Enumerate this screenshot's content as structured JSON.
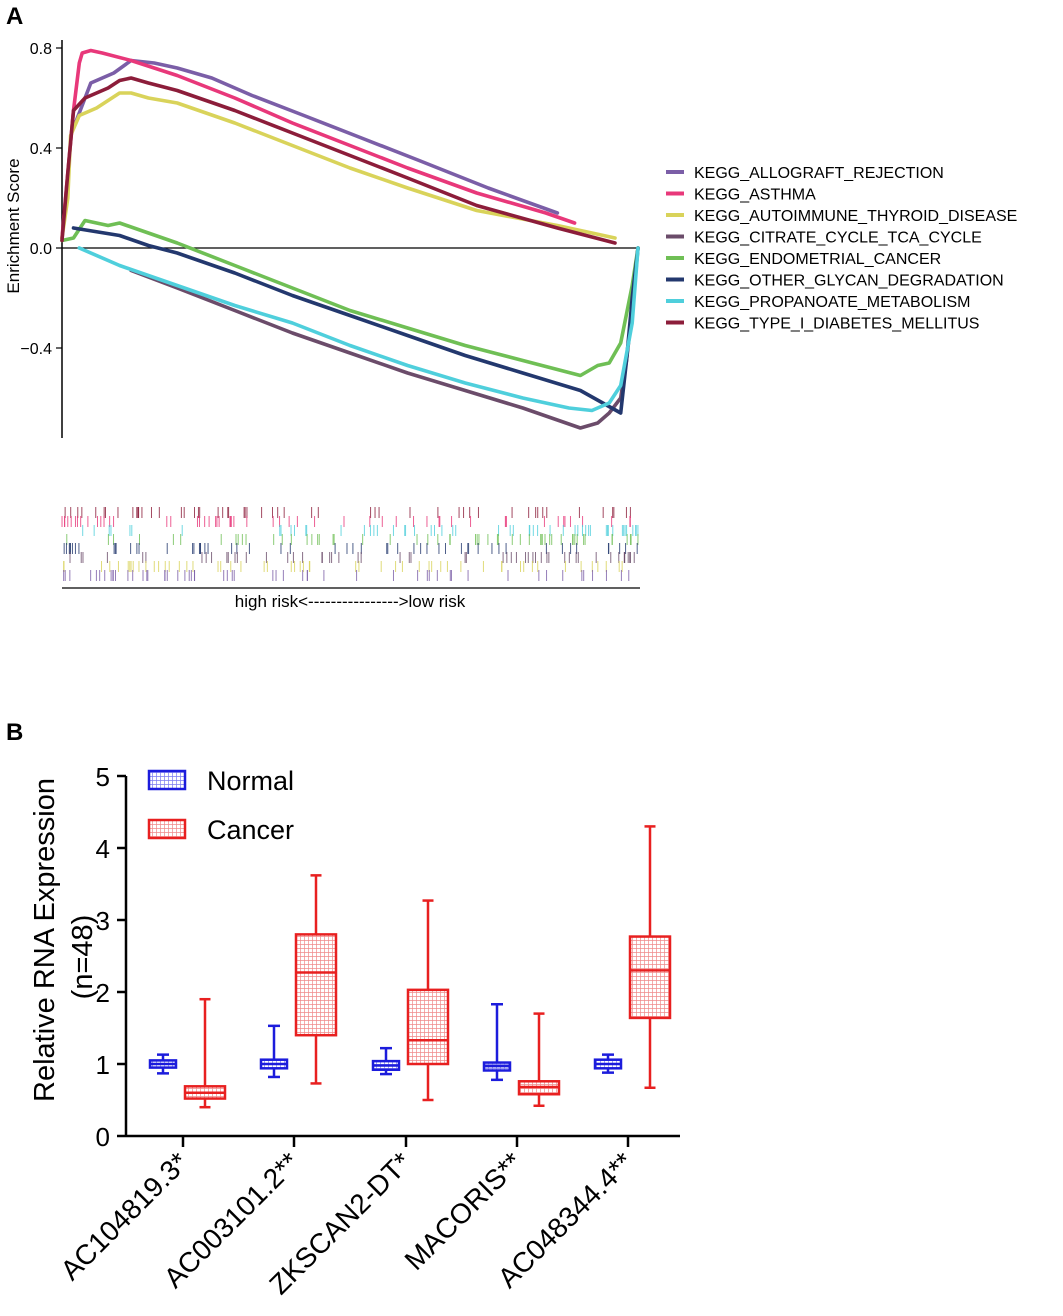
{
  "panels": {
    "a": {
      "letter": "A"
    },
    "b": {
      "letter": "B"
    }
  },
  "chart_data": [
    {
      "type": "line",
      "title": "",
      "xlabel": "high risk<---------------->low risk",
      "ylabel": "Enrichment Score",
      "yticks": [
        0.8,
        0.4,
        0.0,
        -0.4
      ],
      "ytick_labels": [
        "0.8",
        "0.4",
        "0.0",
        "−0.4"
      ],
      "ylim": [
        -0.76,
        0.81
      ],
      "xlim": [
        0,
        1
      ],
      "legend_position": "right",
      "series": [
        {
          "name": "KEGG_ALLOGRAFT_REJECTION",
          "color": "#7b5ea7",
          "x": [
            0.02,
            0.05,
            0.09,
            0.12,
            0.16,
            0.2,
            0.26,
            0.33,
            0.42,
            0.52,
            0.62,
            0.74,
            0.86
          ],
          "y": [
            0.48,
            0.66,
            0.7,
            0.75,
            0.74,
            0.72,
            0.68,
            0.61,
            0.53,
            0.44,
            0.35,
            0.24,
            0.14
          ]
        },
        {
          "name": "KEGG_ASTHMA",
          "color": "#e8387a",
          "x": [
            0.0,
            0.01,
            0.02,
            0.03,
            0.035,
            0.05,
            0.07,
            0.12,
            0.2,
            0.3,
            0.4,
            0.5,
            0.6,
            0.72,
            0.84,
            0.89
          ],
          "y": [
            0.04,
            0.3,
            0.55,
            0.74,
            0.78,
            0.79,
            0.78,
            0.75,
            0.69,
            0.6,
            0.5,
            0.41,
            0.32,
            0.22,
            0.14,
            0.1
          ]
        },
        {
          "name": "KEGG_AUTOIMMUNE_THYROID_DISEASE",
          "color": "#d9d35a",
          "x": [
            0.0,
            0.01,
            0.015,
            0.03,
            0.06,
            0.1,
            0.12,
            0.15,
            0.2,
            0.3,
            0.4,
            0.5,
            0.6,
            0.72,
            0.86,
            0.96
          ],
          "y": [
            0.04,
            0.2,
            0.45,
            0.53,
            0.56,
            0.62,
            0.62,
            0.6,
            0.58,
            0.5,
            0.41,
            0.32,
            0.24,
            0.15,
            0.09,
            0.04
          ]
        },
        {
          "name": "KEGG_CITRATE_CYCLE_TCA_CYCLE",
          "color": "#6b4c6a",
          "x": [
            0.12,
            0.2,
            0.3,
            0.4,
            0.5,
            0.6,
            0.7,
            0.8,
            0.9,
            0.93,
            0.95,
            0.97,
            0.98,
            0.99,
            1.0
          ],
          "y": [
            -0.09,
            -0.16,
            -0.25,
            -0.34,
            -0.42,
            -0.5,
            -0.57,
            -0.64,
            -0.72,
            -0.7,
            -0.66,
            -0.6,
            -0.45,
            -0.25,
            0.0
          ]
        },
        {
          "name": "KEGG_ENDOMETRIAL_CANCER",
          "color": "#6fbf55",
          "x": [
            0.0,
            0.02,
            0.04,
            0.08,
            0.1,
            0.15,
            0.2,
            0.3,
            0.4,
            0.5,
            0.6,
            0.7,
            0.8,
            0.9,
            0.93,
            0.95,
            0.97,
            0.99,
            1.0
          ],
          "y": [
            0.03,
            0.04,
            0.11,
            0.09,
            0.1,
            0.06,
            0.02,
            -0.07,
            -0.16,
            -0.25,
            -0.32,
            -0.39,
            -0.45,
            -0.51,
            -0.47,
            -0.46,
            -0.38,
            -0.15,
            0.0
          ]
        },
        {
          "name": "KEGG_OTHER_GLYCAN_DEGRADATION",
          "color": "#23386e",
          "x": [
            0.02,
            0.1,
            0.15,
            0.2,
            0.3,
            0.4,
            0.5,
            0.6,
            0.7,
            0.8,
            0.9,
            0.97,
            0.98,
            0.99,
            1.0
          ],
          "y": [
            0.08,
            0.05,
            0.01,
            -0.02,
            -0.1,
            -0.19,
            -0.27,
            -0.35,
            -0.43,
            -0.5,
            -0.57,
            -0.66,
            -0.45,
            -0.2,
            0.0
          ]
        },
        {
          "name": "KEGG_PROPANOATE_METABOLISM",
          "color": "#4fcfdc",
          "x": [
            0.03,
            0.1,
            0.2,
            0.3,
            0.4,
            0.5,
            0.6,
            0.7,
            0.8,
            0.88,
            0.92,
            0.95,
            0.97,
            0.99,
            1.0
          ],
          "y": [
            0.0,
            -0.07,
            -0.15,
            -0.23,
            -0.3,
            -0.39,
            -0.47,
            -0.54,
            -0.6,
            -0.64,
            -0.65,
            -0.62,
            -0.55,
            -0.3,
            0.0
          ]
        },
        {
          "name": "KEGG_TYPE_I_DIABETES_MELLITUS",
          "color": "#8c1d3a",
          "x": [
            0.0,
            0.01,
            0.02,
            0.04,
            0.08,
            0.1,
            0.12,
            0.15,
            0.2,
            0.3,
            0.4,
            0.5,
            0.6,
            0.72,
            0.86,
            0.96
          ],
          "y": [
            0.03,
            0.3,
            0.55,
            0.6,
            0.64,
            0.67,
            0.68,
            0.66,
            0.63,
            0.55,
            0.46,
            0.37,
            0.28,
            0.17,
            0.08,
            0.02
          ]
        }
      ]
    },
    {
      "type": "box",
      "title": "",
      "xlabel": "",
      "ylabel": "Relative RNA Expression",
      "ylabel2": "(n=48)",
      "ylim": [
        0,
        5
      ],
      "yticks": [
        0,
        1,
        2,
        3,
        4,
        5
      ],
      "legend_position": "top-left",
      "categories": [
        "AC104819.3*",
        "AC003101.2**",
        "ZKSCAN2-DT*",
        "MACORIS**",
        "AC048344.4**"
      ],
      "series": [
        {
          "name": "Normal",
          "color": "#1c1cdc",
          "boxes": [
            {
              "min": 0.87,
              "q1": 0.95,
              "median": 1.0,
              "q3": 1.05,
              "max": 1.13
            },
            {
              "min": 0.82,
              "q1": 0.94,
              "median": 1.0,
              "q3": 1.06,
              "max": 1.53
            },
            {
              "min": 0.86,
              "q1": 0.92,
              "median": 0.98,
              "q3": 1.04,
              "max": 1.22
            },
            {
              "min": 0.78,
              "q1": 0.91,
              "median": 0.97,
              "q3": 1.02,
              "max": 1.83
            },
            {
              "min": 0.88,
              "q1": 0.94,
              "median": 1.0,
              "q3": 1.06,
              "max": 1.13
            }
          ]
        },
        {
          "name": "Cancer",
          "color": "#e82020",
          "boxes": [
            {
              "min": 0.4,
              "q1": 0.52,
              "median": 0.6,
              "q3": 0.69,
              "max": 1.9
            },
            {
              "min": 0.73,
              "q1": 1.4,
              "median": 2.27,
              "q3": 2.8,
              "max": 3.62
            },
            {
              "min": 0.5,
              "q1": 1.0,
              "median": 1.33,
              "q3": 2.03,
              "max": 3.27
            },
            {
              "min": 0.42,
              "q1": 0.58,
              "median": 0.68,
              "q3": 0.76,
              "max": 1.7
            },
            {
              "min": 0.67,
              "q1": 1.64,
              "median": 2.3,
              "q3": 2.77,
              "max": 4.3
            }
          ]
        }
      ]
    }
  ]
}
